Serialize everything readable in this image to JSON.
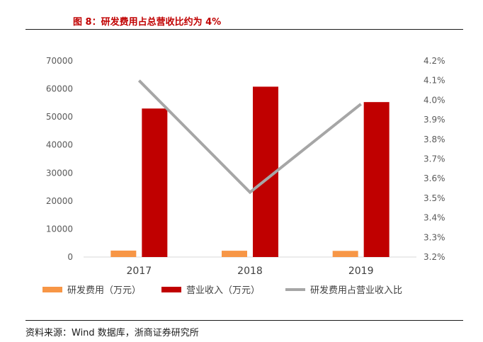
{
  "figure": {
    "title": "图 8：研发费用占总营收比约为 4%",
    "source": "资料来源：Wind 数据库，浙商证券研究所"
  },
  "chart_data": {
    "type": "bar",
    "categories": [
      "2017",
      "2018",
      "2019"
    ],
    "series": [
      {
        "name": "研发费用（万元）",
        "type": "bar",
        "axis": "left",
        "color": "#f79646",
        "values": [
          2300,
          2250,
          2200
        ]
      },
      {
        "name": "营业收入（万元）",
        "type": "bar",
        "axis": "left",
        "color": "#c00000",
        "values": [
          53000,
          60800,
          55300
        ]
      },
      {
        "name": "研发费用占营业收入比",
        "type": "line",
        "axis": "right",
        "color": "#a6a6a6",
        "values": [
          4.1,
          3.53,
          3.98
        ]
      }
    ],
    "y_left": {
      "min": 0,
      "max": 70000,
      "ticks": [
        "0",
        "10000",
        "20000",
        "30000",
        "40000",
        "50000",
        "60000",
        "70000"
      ]
    },
    "y_right": {
      "min": 3.2,
      "max": 4.2,
      "ticks": [
        "3.2%",
        "3.3%",
        "3.4%",
        "3.5%",
        "3.6%",
        "3.7%",
        "3.8%",
        "3.9%",
        "4.0%",
        "4.1%",
        "4.2%"
      ]
    },
    "grid": false,
    "legend_position": "bottom"
  }
}
